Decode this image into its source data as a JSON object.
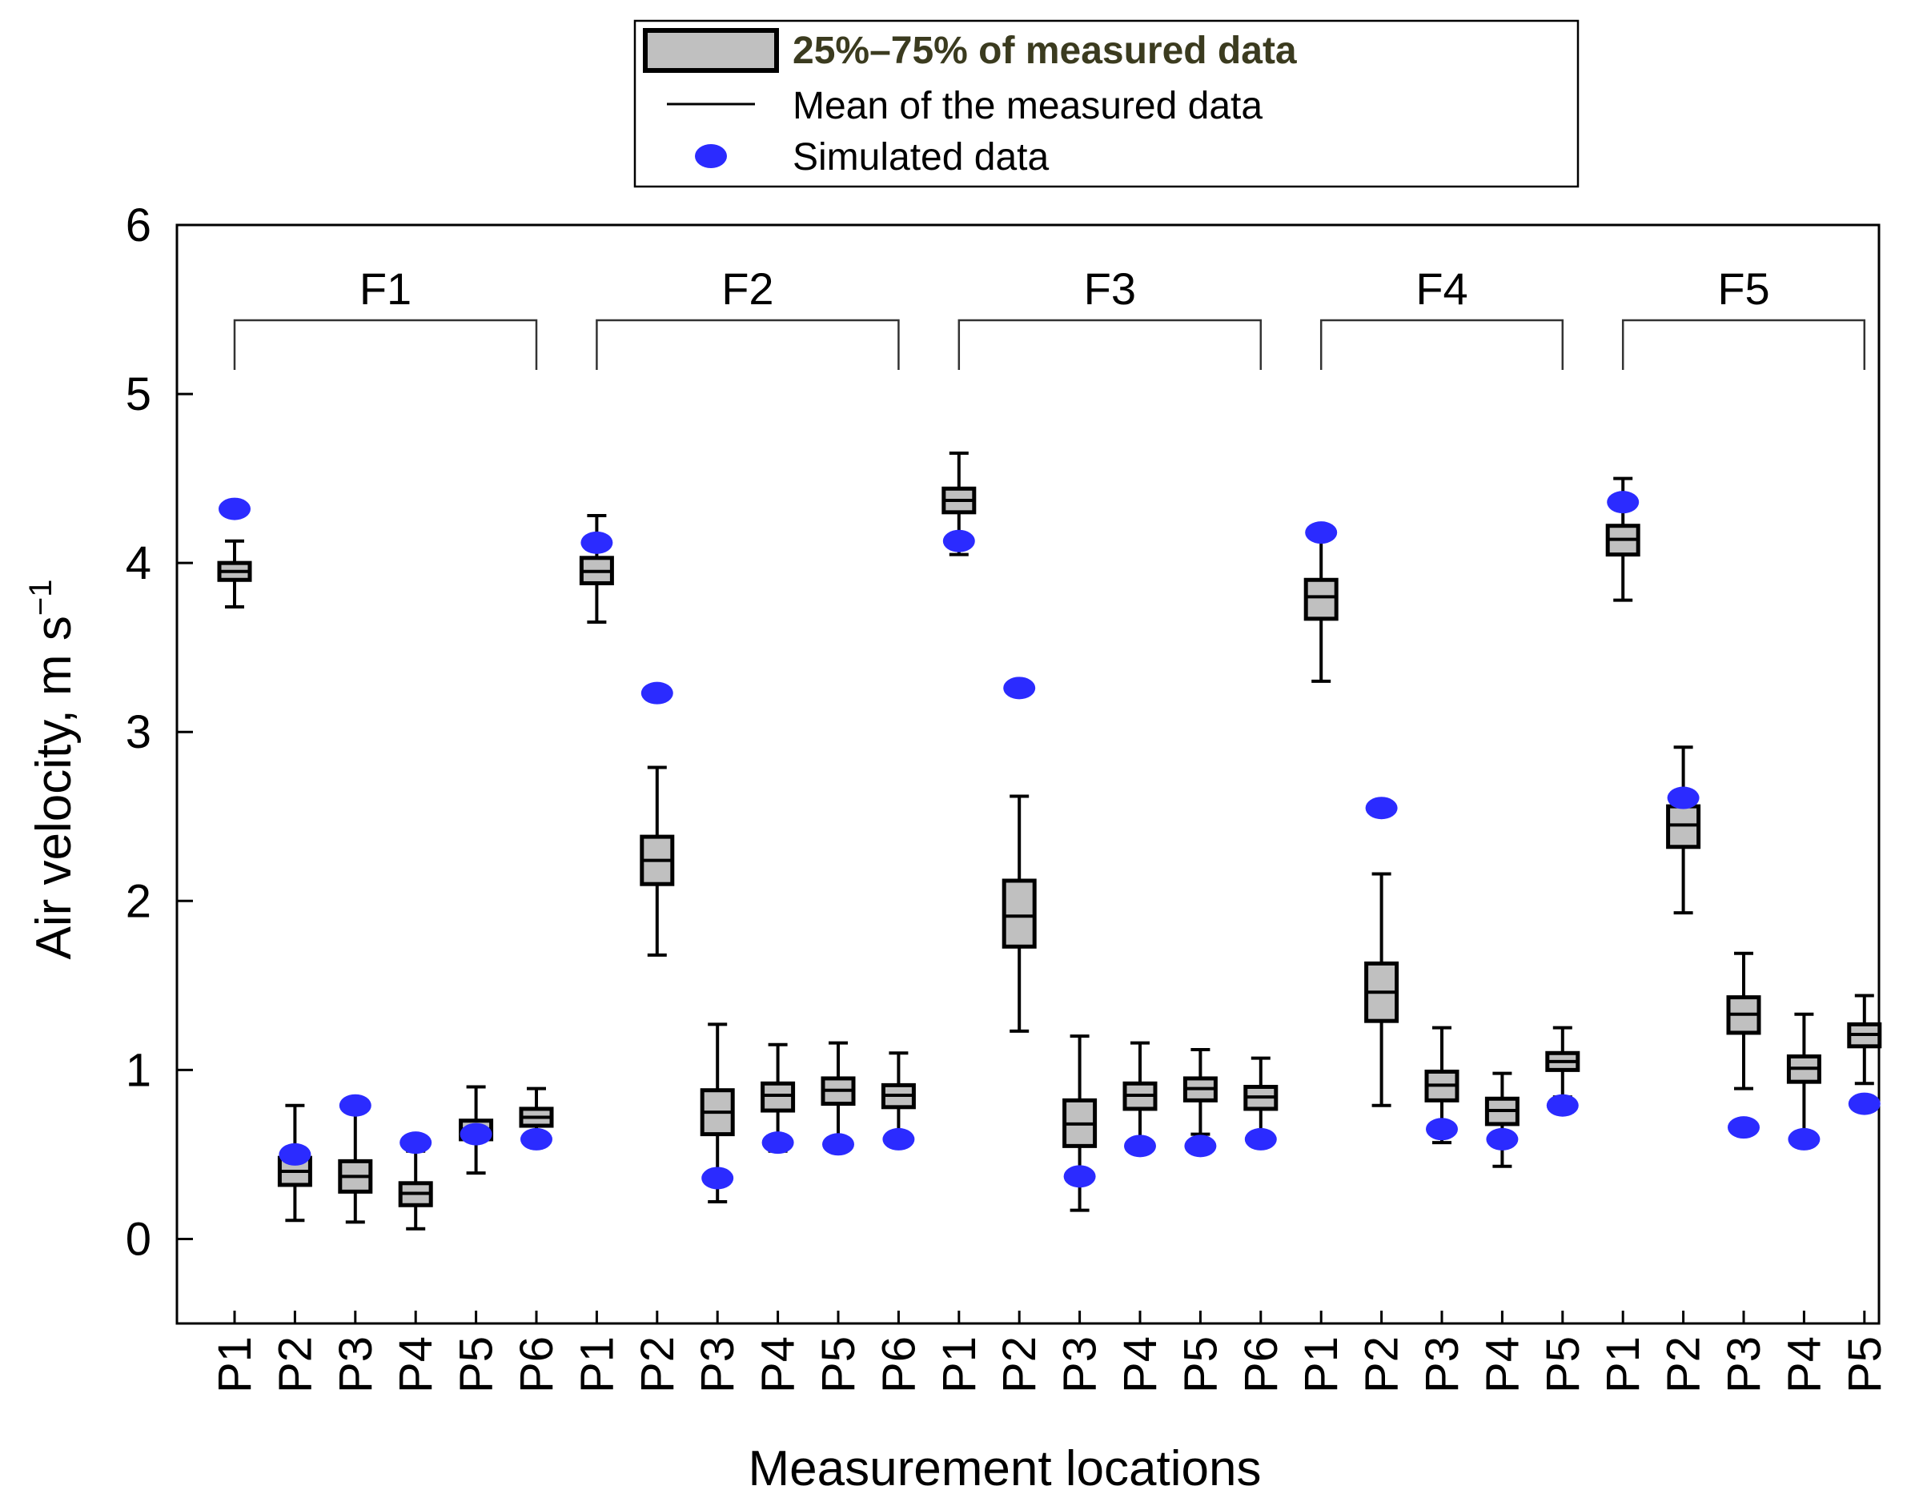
{
  "chart_data": {
    "type": "box",
    "xlabel": "Measurement locations",
    "ylabel": "Air velocity, m s",
    "ylabel_superscript": "−1",
    "ylim": [
      -0.5,
      6
    ],
    "yticks": [
      "0",
      "1",
      "2",
      "3",
      "4",
      "5",
      "6"
    ],
    "legend": {
      "box_label": "25%–75% of measured data",
      "mean_label": "Mean of the measured data",
      "sim_label": "Simulated data",
      "placement": "top-center"
    },
    "colors": {
      "box_fill": "#c0c0c0",
      "sim": "#2b2bff",
      "line": "#000000"
    },
    "groups": [
      {
        "label": "F1",
        "points": [
          {
            "label": "P1",
            "min": 3.74,
            "q1": 3.9,
            "mean": 3.95,
            "q3": 4.0,
            "max": 4.13,
            "sim": 4.32
          },
          {
            "label": "P2",
            "min": 0.11,
            "q1": 0.32,
            "mean": 0.4,
            "q3": 0.48,
            "max": 0.79,
            "sim": 0.5
          },
          {
            "label": "P3",
            "min": 0.1,
            "q1": 0.28,
            "mean": 0.37,
            "q3": 0.46,
            "max": 0.75,
            "sim": 0.79
          },
          {
            "label": "P4",
            "min": 0.06,
            "q1": 0.2,
            "mean": 0.27,
            "q3": 0.33,
            "max": 0.52,
            "sim": 0.57
          },
          {
            "label": "P5",
            "min": 0.39,
            "q1": 0.59,
            "mean": 0.65,
            "q3": 0.7,
            "max": 0.9,
            "sim": 0.62
          },
          {
            "label": "P6",
            "min": 0.55,
            "q1": 0.67,
            "mean": 0.72,
            "q3": 0.77,
            "max": 0.89,
            "sim": 0.59
          }
        ]
      },
      {
        "label": "F2",
        "points": [
          {
            "label": "P1",
            "min": 3.65,
            "q1": 3.88,
            "mean": 3.95,
            "q3": 4.03,
            "max": 4.28,
            "sim": 4.12
          },
          {
            "label": "P2",
            "min": 1.68,
            "q1": 2.1,
            "mean": 2.24,
            "q3": 2.38,
            "max": 2.79,
            "sim": 3.23
          },
          {
            "label": "P3",
            "min": 0.22,
            "q1": 0.62,
            "mean": 0.75,
            "q3": 0.88,
            "max": 1.27,
            "sim": 0.36
          },
          {
            "label": "P4",
            "min": 0.52,
            "q1": 0.76,
            "mean": 0.85,
            "q3": 0.92,
            "max": 1.15,
            "sim": 0.57
          },
          {
            "label": "P5",
            "min": 0.58,
            "q1": 0.8,
            "mean": 0.88,
            "q3": 0.95,
            "max": 1.16,
            "sim": 0.56
          },
          {
            "label": "P6",
            "min": 0.57,
            "q1": 0.78,
            "mean": 0.85,
            "q3": 0.91,
            "max": 1.1,
            "sim": 0.59
          }
        ]
      },
      {
        "label": "F3",
        "points": [
          {
            "label": "P1",
            "min": 4.05,
            "q1": 4.3,
            "mean": 4.37,
            "q3": 4.44,
            "max": 4.65,
            "sim": 4.13
          },
          {
            "label": "P2",
            "min": 1.23,
            "q1": 1.73,
            "mean": 1.91,
            "q3": 2.12,
            "max": 2.62,
            "sim": 3.26
          },
          {
            "label": "P3",
            "min": 0.17,
            "q1": 0.55,
            "mean": 0.68,
            "q3": 0.82,
            "max": 1.2,
            "sim": 0.37
          },
          {
            "label": "P4",
            "min": 0.56,
            "q1": 0.77,
            "mean": 0.85,
            "q3": 0.92,
            "max": 1.16,
            "sim": 0.55
          },
          {
            "label": "P5",
            "min": 0.62,
            "q1": 0.82,
            "mean": 0.89,
            "q3": 0.95,
            "max": 1.12,
            "sim": 0.55
          },
          {
            "label": "P6",
            "min": 0.59,
            "q1": 0.77,
            "mean": 0.84,
            "q3": 0.9,
            "max": 1.07,
            "sim": 0.59
          }
        ]
      },
      {
        "label": "F4",
        "points": [
          {
            "label": "P1",
            "min": 3.3,
            "q1": 3.67,
            "mean": 3.8,
            "q3": 3.9,
            "max": 4.2,
            "sim": 4.18
          },
          {
            "label": "P2",
            "min": 0.79,
            "q1": 1.29,
            "mean": 1.46,
            "q3": 1.63,
            "max": 2.16,
            "sim": 2.55
          },
          {
            "label": "P3",
            "min": 0.57,
            "q1": 0.82,
            "mean": 0.91,
            "q3": 0.99,
            "max": 1.25,
            "sim": 0.65
          },
          {
            "label": "P4",
            "min": 0.43,
            "q1": 0.68,
            "mean": 0.76,
            "q3": 0.83,
            "max": 0.98,
            "sim": 0.59
          },
          {
            "label": "P5",
            "min": 0.84,
            "q1": 1.0,
            "mean": 1.05,
            "q3": 1.1,
            "max": 1.25,
            "sim": 0.79
          }
        ]
      },
      {
        "label": "F5",
        "points": [
          {
            "label": "P1",
            "min": 3.78,
            "q1": 4.05,
            "mean": 4.14,
            "q3": 4.22,
            "max": 4.5,
            "sim": 4.36
          },
          {
            "label": "P2",
            "min": 1.93,
            "q1": 2.32,
            "mean": 2.45,
            "q3": 2.56,
            "max": 2.91,
            "sim": 2.61
          },
          {
            "label": "P3",
            "min": 0.89,
            "q1": 1.22,
            "mean": 1.33,
            "q3": 1.43,
            "max": 1.69,
            "sim": 0.66
          },
          {
            "label": "P4",
            "min": 0.63,
            "q1": 0.93,
            "mean": 1.01,
            "q3": 1.08,
            "max": 1.33,
            "sim": 0.59
          },
          {
            "label": "P5",
            "min": 0.92,
            "q1": 1.14,
            "mean": 1.21,
            "q3": 1.27,
            "max": 1.44,
            "sim": 0.8
          }
        ]
      }
    ]
  }
}
